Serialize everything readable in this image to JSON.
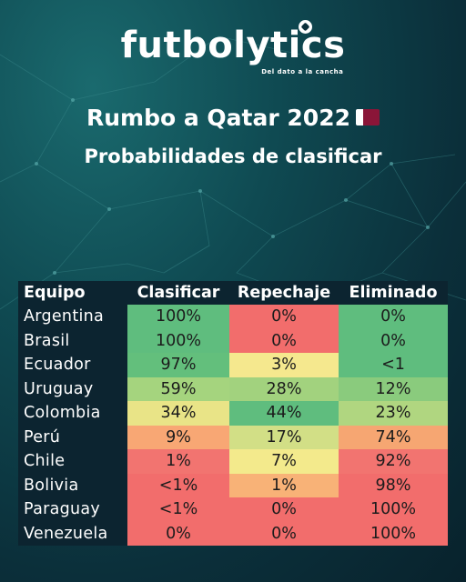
{
  "brand": {
    "name": "futbolytics",
    "tagline": "Del dato a la cancha"
  },
  "title": "Rumbo a Qatar 2022",
  "subtitle": "Probabilidades de clasificar",
  "colors": {
    "dark_green": "#5dbb7a",
    "green": "#7fc77c",
    "light_green": "#a9d57a",
    "yellow": "#efe58a",
    "orange": "#f7a96f",
    "red": "#f26b6b"
  },
  "table": {
    "headers": [
      "Equipo",
      "Clasificar",
      "Repechaje",
      "Eliminado"
    ],
    "rows": [
      {
        "team": "Argentina",
        "cells": [
          {
            "v": "100%",
            "c": "#5fbd7e"
          },
          {
            "v": "0%",
            "c": "#f26d6c"
          },
          {
            "v": "0%",
            "c": "#5fbd7e"
          }
        ]
      },
      {
        "team": "Brasil",
        "cells": [
          {
            "v": "100%",
            "c": "#5fbd7e"
          },
          {
            "v": "0%",
            "c": "#f26d6c"
          },
          {
            "v": "0%",
            "c": "#5fbd7e"
          }
        ]
      },
      {
        "team": "Ecuador",
        "cells": [
          {
            "v": "97%",
            "c": "#63bf7c"
          },
          {
            "v": "3%",
            "c": "#f5e88e"
          },
          {
            "v": "<1",
            "c": "#5fbd7e"
          }
        ]
      },
      {
        "team": "Uruguay",
        "cells": [
          {
            "v": "59%",
            "c": "#a5d47e"
          },
          {
            "v": "28%",
            "c": "#a2d27e"
          },
          {
            "v": "12%",
            "c": "#8acb7d"
          }
        ]
      },
      {
        "team": "Colombia",
        "cells": [
          {
            "v": "34%",
            "c": "#e9e487"
          },
          {
            "v": "44%",
            "c": "#5fbd7e"
          },
          {
            "v": "23%",
            "c": "#b0d680"
          }
        ]
      },
      {
        "team": "Perú",
        "cells": [
          {
            "v": "9%",
            "c": "#f8a774"
          },
          {
            "v": "17%",
            "c": "#d2df86"
          },
          {
            "v": "74%",
            "c": "#f6a672"
          }
        ]
      },
      {
        "team": "Chile",
        "cells": [
          {
            "v": "1%",
            "c": "#f27470"
          },
          {
            "v": "7%",
            "c": "#f3ea8c"
          },
          {
            "v": "92%",
            "c": "#f27470"
          }
        ]
      },
      {
        "team": "Bolivia",
        "cells": [
          {
            "v": "<1%",
            "c": "#f26d6c"
          },
          {
            "v": "1%",
            "c": "#f8b277"
          },
          {
            "v": "98%",
            "c": "#f26d6c"
          }
        ]
      },
      {
        "team": "Paraguay",
        "cells": [
          {
            "v": "<1%",
            "c": "#f26d6c"
          },
          {
            "v": "0%",
            "c": "#f26d6c"
          },
          {
            "v": "100%",
            "c": "#f26d6c"
          }
        ]
      },
      {
        "team": "Venezuela",
        "cells": [
          {
            "v": "0%",
            "c": "#f26d6c"
          },
          {
            "v": "0%",
            "c": "#f26d6c"
          },
          {
            "v": "100%",
            "c": "#f26d6c"
          }
        ]
      }
    ]
  }
}
